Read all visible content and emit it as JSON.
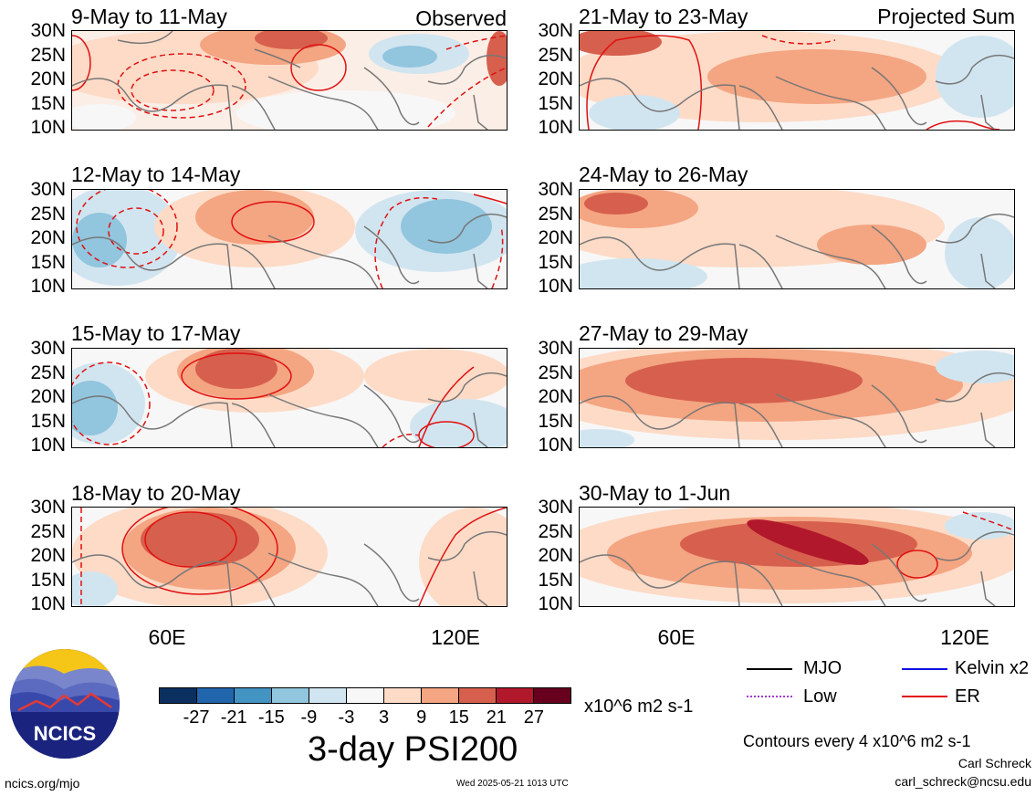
{
  "panels_left": [
    {
      "title": "9-May to 11-May",
      "tag": "Observed"
    },
    {
      "title": "12-May to 14-May",
      "tag": ""
    },
    {
      "title": "15-May to 17-May",
      "tag": ""
    },
    {
      "title": "18-May to 20-May",
      "tag": ""
    }
  ],
  "panels_right": [
    {
      "title": "21-May to 23-May",
      "tag": "Projected Sum"
    },
    {
      "title": "24-May to 26-May",
      "tag": ""
    },
    {
      "title": "27-May to 29-May",
      "tag": ""
    },
    {
      "title": "30-May to 1-Jun",
      "tag": ""
    }
  ],
  "lat_labels": [
    "30N",
    "25N",
    "20N",
    "15N",
    "10N"
  ],
  "lon_labels": [
    "60E",
    "120E"
  ],
  "colorbar": {
    "ticks": [
      "-27",
      "-21",
      "-15",
      "-9",
      "-3",
      "3",
      "9",
      "15",
      "21",
      "27"
    ],
    "colors": [
      "#0b2f5f",
      "#2166ac",
      "#4393c3",
      "#92c5de",
      "#d1e5f0",
      "#f7f7f7",
      "#fddbc7",
      "#f4a582",
      "#d6604d",
      "#b2182b",
      "#67001f"
    ],
    "units": "x10^6 m2 s-1",
    "title": "3-day PSI200"
  },
  "legend": {
    "items": [
      {
        "label": "MJO",
        "color": "#000000"
      },
      {
        "label": "Kelvin x2",
        "color": "#1010e0"
      },
      {
        "label": "Low",
        "color": "#9d3bd1"
      },
      {
        "label": "ER",
        "color": "#e01010"
      }
    ],
    "contours_note": "Contours every 4 x10^6 m2 s-1",
    "author": "Carl Schreck",
    "email": "carl_schreck@ncsu.edu"
  },
  "footer": {
    "site": "ncics.org/mjo",
    "timestamp": "Wed 2025-05-21 1013 UTC",
    "logo_text": "NCICS"
  }
}
